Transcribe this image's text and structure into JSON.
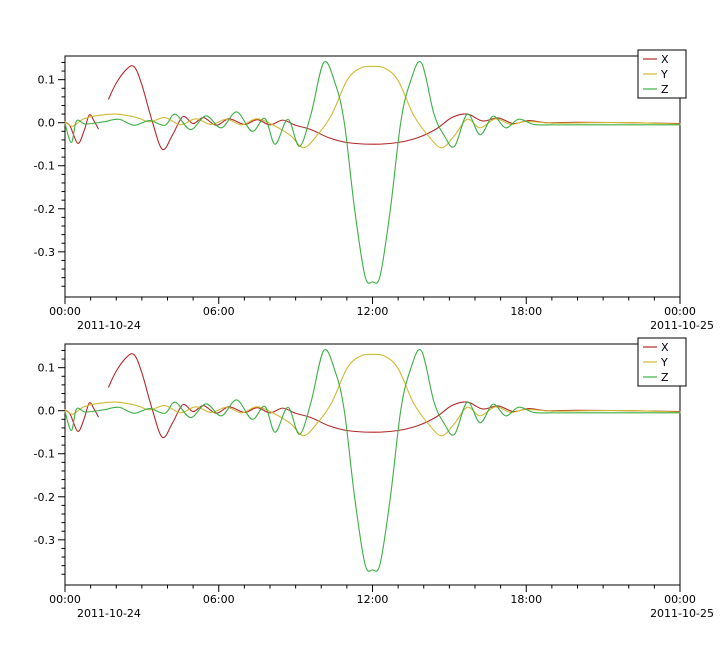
{
  "figure": {
    "background": "#ffffff",
    "axis_color": "#000000"
  },
  "chart_data": [
    {
      "type": "line",
      "title": "",
      "xlabel": "",
      "ylabel": "",
      "xlim": [
        0,
        24
      ],
      "ylim": [
        -0.405,
        0.155
      ],
      "x_tick_positions": [
        0,
        6,
        12,
        18,
        24
      ],
      "x_tick_labels": [
        "00:00",
        "06:00",
        "12:00",
        "18:00",
        "00:00"
      ],
      "x_minor_tick_every_hours": 1,
      "date_label_left": "2011-10-24",
      "date_label_right": "2011-10-25",
      "y_ticks": [
        0.1,
        0.0,
        -0.1,
        -0.2,
        -0.3
      ],
      "y_tick_labels": [
        "0.1",
        "0.0",
        "-0.1",
        "-0.2",
        "-0.3"
      ],
      "y_minor_tick_step": 0.02,
      "grid": false,
      "legend": {
        "position": "top-right",
        "entries": [
          "X",
          "Y",
          "Z"
        ]
      },
      "series": [
        {
          "name": "X",
          "color": "#b22a2a",
          "points": [
            [
              0,
              0.002
            ],
            [
              0.2,
              -0.008
            ],
            [
              0.5,
              -0.048
            ],
            [
              0.75,
              -0.018
            ],
            [
              0.95,
              0.018
            ],
            [
              1.15,
              0.002
            ],
            [
              1.3,
              -0.014
            ],
            [
              1.5,
              null
            ],
            [
              1.7,
              0.055
            ],
            [
              2.0,
              0.092
            ],
            [
              2.4,
              0.124
            ],
            [
              2.7,
              0.13
            ],
            [
              3.0,
              0.088
            ],
            [
              3.4,
              0.004
            ],
            [
              3.8,
              -0.062
            ],
            [
              4.2,
              -0.028
            ],
            [
              4.6,
              0.014
            ],
            [
              5.0,
              -0.002
            ],
            [
              5.4,
              0.012
            ],
            [
              5.9,
              -0.006
            ],
            [
              6.4,
              0.009
            ],
            [
              7.0,
              -0.004
            ],
            [
              7.5,
              0.007
            ],
            [
              8.0,
              -0.005
            ],
            [
              8.5,
              0.006
            ],
            [
              9.0,
              -0.006
            ],
            [
              9.6,
              -0.016
            ],
            [
              10.3,
              -0.035
            ],
            [
              11.0,
              -0.046
            ],
            [
              12.0,
              -0.05
            ],
            [
              13.0,
              -0.046
            ],
            [
              13.8,
              -0.034
            ],
            [
              14.5,
              -0.014
            ],
            [
              15.1,
              0.012
            ],
            [
              15.7,
              0.02
            ],
            [
              16.3,
              0.004
            ],
            [
              16.9,
              0.011
            ],
            [
              17.5,
              -0.002
            ],
            [
              18.1,
              0.005
            ],
            [
              18.8,
              0.0
            ],
            [
              20.0,
              0.001
            ],
            [
              22.0,
              0.0
            ],
            [
              24.0,
              -0.002
            ]
          ]
        },
        {
          "name": "Y",
          "color": "#cfba35",
          "points": [
            [
              0,
              0.002
            ],
            [
              0.3,
              -0.008
            ],
            [
              0.7,
              0.008
            ],
            [
              1.2,
              0.016
            ],
            [
              2.0,
              0.02
            ],
            [
              2.8,
              0.012
            ],
            [
              3.3,
              0.002
            ],
            [
              3.9,
              0.012
            ],
            [
              4.5,
              -0.005
            ],
            [
              5.1,
              0.009
            ],
            [
              5.7,
              -0.004
            ],
            [
              6.3,
              0.008
            ],
            [
              6.9,
              -0.005
            ],
            [
              7.5,
              0.009
            ],
            [
              8.2,
              -0.008
            ],
            [
              8.8,
              -0.03
            ],
            [
              9.3,
              -0.058
            ],
            [
              9.8,
              -0.032
            ],
            [
              10.4,
              0.018
            ],
            [
              11.0,
              0.098
            ],
            [
              11.5,
              0.126
            ],
            [
              12.0,
              0.131
            ],
            [
              12.5,
              0.126
            ],
            [
              13.0,
              0.098
            ],
            [
              13.6,
              0.018
            ],
            [
              14.2,
              -0.032
            ],
            [
              14.7,
              -0.058
            ],
            [
              15.2,
              -0.03
            ],
            [
              15.7,
              0.008
            ],
            [
              16.2,
              -0.012
            ],
            [
              16.8,
              0.009
            ],
            [
              17.4,
              -0.004
            ],
            [
              18.0,
              0.003
            ],
            [
              19.0,
              -0.001
            ],
            [
              20.5,
              0.0
            ],
            [
              22.0,
              0.0
            ],
            [
              24.0,
              -0.003
            ]
          ]
        },
        {
          "name": "Z",
          "color": "#3cb044",
          "points": [
            [
              0,
              -0.002
            ],
            [
              0.25,
              -0.046
            ],
            [
              0.45,
              0.004
            ],
            [
              0.8,
              -0.003
            ],
            [
              1.5,
              0.002
            ],
            [
              2.1,
              0.008
            ],
            [
              2.7,
              -0.006
            ],
            [
              3.3,
              0.005
            ],
            [
              3.9,
              -0.006
            ],
            [
              4.3,
              0.02
            ],
            [
              4.9,
              -0.016
            ],
            [
              5.5,
              0.016
            ],
            [
              6.1,
              -0.012
            ],
            [
              6.7,
              0.025
            ],
            [
              7.3,
              -0.02
            ],
            [
              7.8,
              0.01
            ],
            [
              8.2,
              -0.05
            ],
            [
              8.7,
              0.008
            ],
            [
              9.15,
              -0.055
            ],
            [
              9.6,
              0.02
            ],
            [
              10.1,
              0.14
            ],
            [
              10.55,
              0.09
            ],
            [
              10.9,
              0.0
            ],
            [
              11.3,
              -0.2
            ],
            [
              11.7,
              -0.355
            ],
            [
              12.0,
              -0.37
            ],
            [
              12.3,
              -0.355
            ],
            [
              12.7,
              -0.2
            ],
            [
              13.1,
              0.0
            ],
            [
              13.45,
              0.09
            ],
            [
              13.9,
              0.14
            ],
            [
              14.4,
              0.02
            ],
            [
              14.8,
              -0.03
            ],
            [
              15.2,
              -0.055
            ],
            [
              15.7,
              0.02
            ],
            [
              16.2,
              -0.028
            ],
            [
              16.7,
              0.015
            ],
            [
              17.2,
              -0.012
            ],
            [
              17.7,
              0.008
            ],
            [
              18.3,
              -0.004
            ],
            [
              19.0,
              -0.005
            ],
            [
              20.0,
              -0.005
            ],
            [
              22.0,
              -0.005
            ],
            [
              24.0,
              -0.005
            ]
          ]
        }
      ]
    },
    {
      "type": "line",
      "title": "",
      "xlabel": "",
      "ylabel": "",
      "xlim": [
        0,
        24
      ],
      "ylim": [
        -0.405,
        0.155
      ],
      "x_tick_positions": [
        0,
        6,
        12,
        18,
        24
      ],
      "x_tick_labels": [
        "00:00",
        "06:00",
        "12:00",
        "18:00",
        "00:00"
      ],
      "x_minor_tick_every_hours": 1,
      "date_label_left": "2011-10-24",
      "date_label_right": "2011-10-25",
      "y_ticks": [
        0.1,
        0.0,
        -0.1,
        -0.2,
        -0.3
      ],
      "y_tick_labels": [
        "0.1",
        "0.0",
        "-0.1",
        "-0.2",
        "-0.3"
      ],
      "y_minor_tick_step": 0.02,
      "grid": false,
      "legend": {
        "position": "top-right",
        "entries": [
          "X",
          "Y",
          "Z"
        ]
      },
      "series": [
        {
          "name": "X",
          "color": "#b22a2a",
          "points": [
            [
              0,
              0.002
            ],
            [
              0.2,
              -0.008
            ],
            [
              0.5,
              -0.048
            ],
            [
              0.75,
              -0.018
            ],
            [
              0.95,
              0.018
            ],
            [
              1.15,
              0.002
            ],
            [
              1.3,
              -0.014
            ],
            [
              1.5,
              null
            ],
            [
              1.7,
              0.055
            ],
            [
              2.0,
              0.092
            ],
            [
              2.4,
              0.124
            ],
            [
              2.7,
              0.13
            ],
            [
              3.0,
              0.088
            ],
            [
              3.4,
              0.004
            ],
            [
              3.8,
              -0.062
            ],
            [
              4.2,
              -0.028
            ],
            [
              4.6,
              0.014
            ],
            [
              5.0,
              -0.002
            ],
            [
              5.4,
              0.012
            ],
            [
              5.9,
              -0.006
            ],
            [
              6.4,
              0.009
            ],
            [
              7.0,
              -0.004
            ],
            [
              7.5,
              0.007
            ],
            [
              8.0,
              -0.005
            ],
            [
              8.5,
              0.006
            ],
            [
              9.0,
              -0.006
            ],
            [
              9.6,
              -0.016
            ],
            [
              10.3,
              -0.035
            ],
            [
              11.0,
              -0.046
            ],
            [
              12.0,
              -0.05
            ],
            [
              13.0,
              -0.046
            ],
            [
              13.8,
              -0.034
            ],
            [
              14.5,
              -0.014
            ],
            [
              15.1,
              0.012
            ],
            [
              15.7,
              0.02
            ],
            [
              16.3,
              0.004
            ],
            [
              16.9,
              0.011
            ],
            [
              17.5,
              -0.002
            ],
            [
              18.1,
              0.005
            ],
            [
              18.8,
              0.0
            ],
            [
              20.0,
              0.001
            ],
            [
              22.0,
              0.0
            ],
            [
              24.0,
              -0.002
            ]
          ]
        },
        {
          "name": "Y",
          "color": "#cfba35",
          "points": [
            [
              0,
              0.002
            ],
            [
              0.3,
              -0.008
            ],
            [
              0.7,
              0.008
            ],
            [
              1.2,
              0.016
            ],
            [
              2.0,
              0.02
            ],
            [
              2.8,
              0.012
            ],
            [
              3.3,
              0.002
            ],
            [
              3.9,
              0.012
            ],
            [
              4.5,
              -0.005
            ],
            [
              5.1,
              0.009
            ],
            [
              5.7,
              -0.004
            ],
            [
              6.3,
              0.008
            ],
            [
              6.9,
              -0.005
            ],
            [
              7.5,
              0.009
            ],
            [
              8.2,
              -0.008
            ],
            [
              8.8,
              -0.03
            ],
            [
              9.3,
              -0.058
            ],
            [
              9.8,
              -0.032
            ],
            [
              10.4,
              0.018
            ],
            [
              11.0,
              0.098
            ],
            [
              11.5,
              0.126
            ],
            [
              12.0,
              0.131
            ],
            [
              12.5,
              0.126
            ],
            [
              13.0,
              0.098
            ],
            [
              13.6,
              0.018
            ],
            [
              14.2,
              -0.032
            ],
            [
              14.7,
              -0.058
            ],
            [
              15.2,
              -0.03
            ],
            [
              15.7,
              0.008
            ],
            [
              16.2,
              -0.012
            ],
            [
              16.8,
              0.009
            ],
            [
              17.4,
              -0.004
            ],
            [
              18.0,
              0.003
            ],
            [
              19.0,
              -0.001
            ],
            [
              20.5,
              0.0
            ],
            [
              22.0,
              0.0
            ],
            [
              24.0,
              -0.003
            ]
          ]
        },
        {
          "name": "Z",
          "color": "#3cb044",
          "points": [
            [
              0,
              -0.002
            ],
            [
              0.25,
              -0.046
            ],
            [
              0.45,
              0.004
            ],
            [
              0.8,
              -0.003
            ],
            [
              1.5,
              0.002
            ],
            [
              2.1,
              0.008
            ],
            [
              2.7,
              -0.006
            ],
            [
              3.3,
              0.005
            ],
            [
              3.9,
              -0.006
            ],
            [
              4.3,
              0.02
            ],
            [
              4.9,
              -0.016
            ],
            [
              5.5,
              0.016
            ],
            [
              6.1,
              -0.012
            ],
            [
              6.7,
              0.025
            ],
            [
              7.3,
              -0.02
            ],
            [
              7.8,
              0.01
            ],
            [
              8.2,
              -0.05
            ],
            [
              8.7,
              0.008
            ],
            [
              9.15,
              -0.055
            ],
            [
              9.6,
              0.02
            ],
            [
              10.1,
              0.14
            ],
            [
              10.55,
              0.09
            ],
            [
              10.9,
              0.0
            ],
            [
              11.3,
              -0.2
            ],
            [
              11.7,
              -0.355
            ],
            [
              12.0,
              -0.37
            ],
            [
              12.3,
              -0.355
            ],
            [
              12.7,
              -0.2
            ],
            [
              13.1,
              0.0
            ],
            [
              13.45,
              0.09
            ],
            [
              13.9,
              0.14
            ],
            [
              14.4,
              0.02
            ],
            [
              14.8,
              -0.03
            ],
            [
              15.2,
              -0.055
            ],
            [
              15.7,
              0.02
            ],
            [
              16.2,
              -0.028
            ],
            [
              16.7,
              0.015
            ],
            [
              17.2,
              -0.012
            ],
            [
              17.7,
              0.008
            ],
            [
              18.3,
              -0.004
            ],
            [
              19.0,
              -0.005
            ],
            [
              20.0,
              -0.005
            ],
            [
              22.0,
              -0.005
            ],
            [
              24.0,
              -0.005
            ]
          ]
        }
      ]
    }
  ]
}
